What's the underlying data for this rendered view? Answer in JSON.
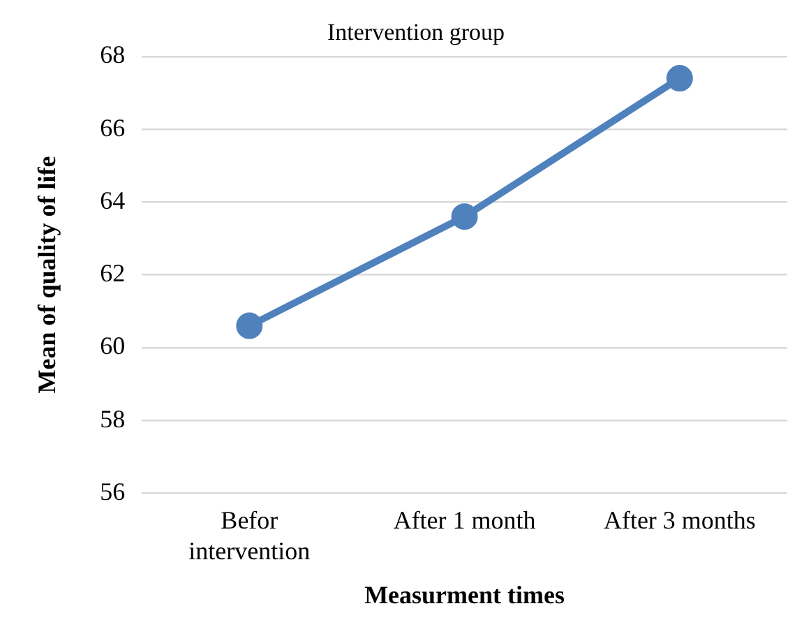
{
  "chart_data": {
    "type": "line",
    "title": "Intervention group",
    "xlabel": "Measurment times",
    "ylabel": "Mean of quality of life",
    "categories": [
      "Befor intervention",
      "After 1 month",
      "After 3 months"
    ],
    "series": [
      {
        "color": "#4f81bd",
        "values": [
          60.6,
          63.6,
          67.4
        ]
      }
    ],
    "ylim": [
      56,
      68
    ],
    "yticks": [
      56,
      58,
      60,
      62,
      64,
      66,
      68
    ],
    "grid": "y",
    "legend": false,
    "marker": "circle",
    "line_style": "solid"
  }
}
